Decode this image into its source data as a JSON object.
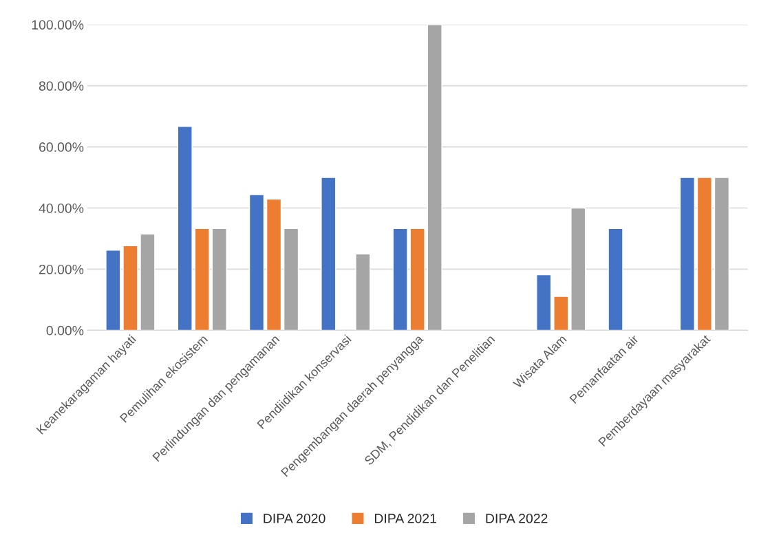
{
  "chart_data": {
    "type": "bar",
    "categories": [
      "Keanekaragaman hayati",
      "Pemulihan ekosistem",
      "Perlindungan dan pengamanan",
      "Pendiidikan konservasi",
      "Pengembangan daerah penyangga",
      "SDM, Pendidikan dan Penelitian",
      "Wisata Alam",
      "Pemanfaatan air",
      "Pemberdayaan masyarakat"
    ],
    "series": [
      {
        "name": "DIPA 2020",
        "color": "#4472c4",
        "values": [
          26.2,
          66.7,
          44.4,
          50,
          33.3,
          null,
          18.2,
          33.3,
          50
        ]
      },
      {
        "name": "DIPA 2021",
        "color": "#ed7d31",
        "values": [
          27.7,
          33.3,
          42.9,
          null,
          33.3,
          null,
          11.1,
          null,
          50
        ]
      },
      {
        "name": "DIPA 2022",
        "color": "#a5a5a5",
        "values": [
          31.5,
          33.3,
          33.3,
          25,
          100,
          null,
          40,
          null,
          50
        ]
      }
    ],
    "ylim": [
      0,
      100
    ],
    "yticks": [
      {
        "value": 0,
        "label": "0.00%"
      },
      {
        "value": 20,
        "label": "20.00%"
      },
      {
        "value": 40,
        "label": "40.00%"
      },
      {
        "value": 60,
        "label": "60.00%"
      },
      {
        "value": 80,
        "label": "80.00%"
      },
      {
        "value": 100,
        "label": "100.00%"
      }
    ],
    "grid": "y",
    "legend": "bottom"
  }
}
